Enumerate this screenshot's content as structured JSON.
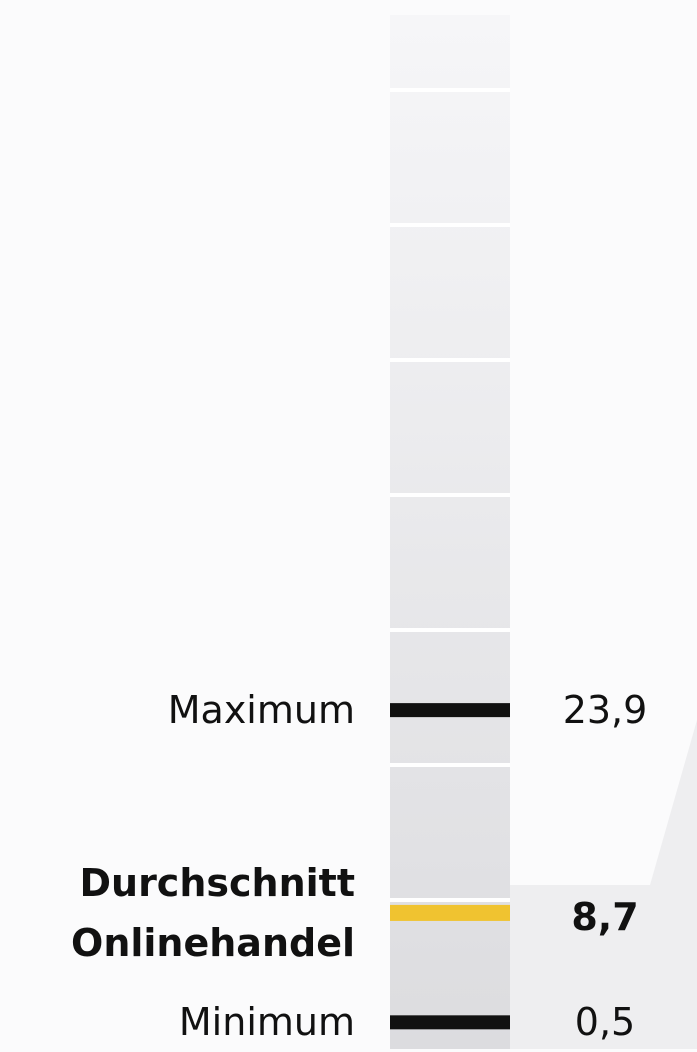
{
  "chart_data": {
    "type": "range",
    "categories": [
      "Maximum",
      "Durchschnitt Onlinehandel",
      "Minimum"
    ],
    "values": [
      23.9,
      8.7,
      0.5
    ],
    "value_labels": [
      "23,9",
      "8,7",
      "0,5"
    ],
    "colors": [
      "#111111",
      "#f0c330",
      "#111111"
    ],
    "bold": [
      false,
      true,
      false
    ],
    "ylim": [
      0,
      76
    ]
  }
}
